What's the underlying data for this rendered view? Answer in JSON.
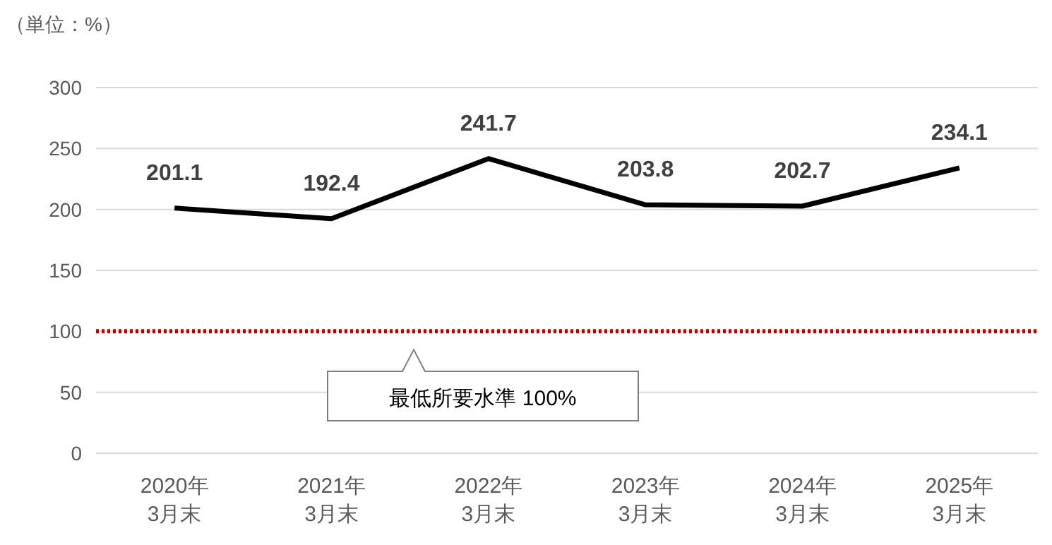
{
  "chart_data": {
    "type": "line",
    "ylabel": "（単位：%）",
    "categories": [
      "2020年\n3月末",
      "2021年\n3月末",
      "2022年\n3月末",
      "2023年\n3月末",
      "2024年\n3月末",
      "2025年\n3月末"
    ],
    "series": [
      {
        "color": "#000000",
        "values": [
          201.1,
          192.4,
          241.7,
          203.8,
          202.7,
          234.1
        ]
      }
    ],
    "ylim": [
      0,
      300
    ],
    "yticks": [
      0,
      50,
      100,
      150,
      200,
      250,
      300
    ],
    "grid": "y",
    "data_labels": true,
    "marker": "none",
    "line_style": "solid",
    "ref_lines": [
      {
        "axis": "y",
        "value": 100,
        "label": "最低所要水準 100%",
        "color": "#c00000",
        "line_style": "dotted"
      }
    ]
  }
}
